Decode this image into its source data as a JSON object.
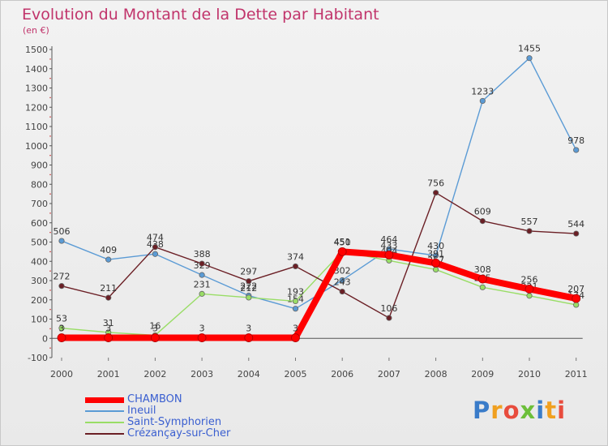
{
  "chart_data": {
    "type": "line",
    "title": "Evolution du Montant de la Dette par Habitant",
    "subtitle": "(en €)",
    "x": [
      "2000",
      "2001",
      "2002",
      "2003",
      "2004",
      "2005",
      "2006",
      "2007",
      "2008",
      "2009",
      "2010",
      "2011"
    ],
    "ylim": [
      -100,
      1500
    ],
    "yticks": [
      -100,
      0,
      100,
      200,
      300,
      400,
      500,
      600,
      700,
      800,
      900,
      1000,
      1100,
      1200,
      1300,
      1400,
      1500
    ],
    "grid": false,
    "legend_position": "bottom-left",
    "series": [
      {
        "name": "Ineuil",
        "color": "#5b9bd5",
        "values": [
          506,
          409,
          438,
          329,
          222,
          154,
          302,
          464,
          430,
          1233,
          1455,
          978
        ]
      },
      {
        "name": "Saint-Symphorien",
        "color": "#99dd66",
        "values": [
          53,
          31,
          16,
          231,
          212,
          193,
          451,
          404,
          357,
          265,
          221,
          174
        ]
      },
      {
        "name": "Crézançay-sur-Cher",
        "color": "#6b1f25",
        "values": [
          272,
          211,
          474,
          388,
          297,
          374,
          243,
          106,
          756,
          609,
          557,
          544
        ]
      },
      {
        "name": "CHAMBON",
        "color": "#ff0000",
        "values": [
          3,
          3,
          3,
          3,
          3,
          3,
          450,
          433,
          391,
          308,
          256,
          207
        ]
      }
    ],
    "data_labels": {
      "Ineuil": [
        "506",
        "409",
        "438",
        "329",
        "222",
        "154",
        "302",
        "464",
        "430",
        "1233",
        "1455",
        "978"
      ],
      "Saint-Symphorien": [
        "53",
        "31",
        "16",
        "231",
        "212",
        "193",
        "451",
        "404",
        "357",
        "265",
        "221",
        "174"
      ],
      "Crézançay-sur-Cher": [
        "272",
        "211",
        "474",
        "388",
        "297",
        "374",
        "243",
        "106",
        "756",
        "609",
        "557",
        "544"
      ],
      "CHAMBON": [
        "3",
        "3",
        "3",
        "3",
        "3",
        "3",
        "450",
        "433",
        "391",
        "308",
        "256",
        "207"
      ]
    }
  },
  "legend": [
    {
      "label": "CHAMBON",
      "color": "#ff0000",
      "thick": true
    },
    {
      "label": "Ineuil",
      "color": "#5b9bd5",
      "thick": false
    },
    {
      "label": "Saint-Symphorien",
      "color": "#99dd66",
      "thick": false
    },
    {
      "label": "Crézançay-sur-Cher",
      "color": "#6b1f25",
      "thick": false
    }
  ],
  "logo": {
    "text": "Proxiti",
    "colors": [
      "#3a7cc9",
      "#f0a020",
      "#e84c3d",
      "#6cbf3a",
      "#3a7cc9",
      "#f0a020",
      "#e84c3d"
    ]
  }
}
